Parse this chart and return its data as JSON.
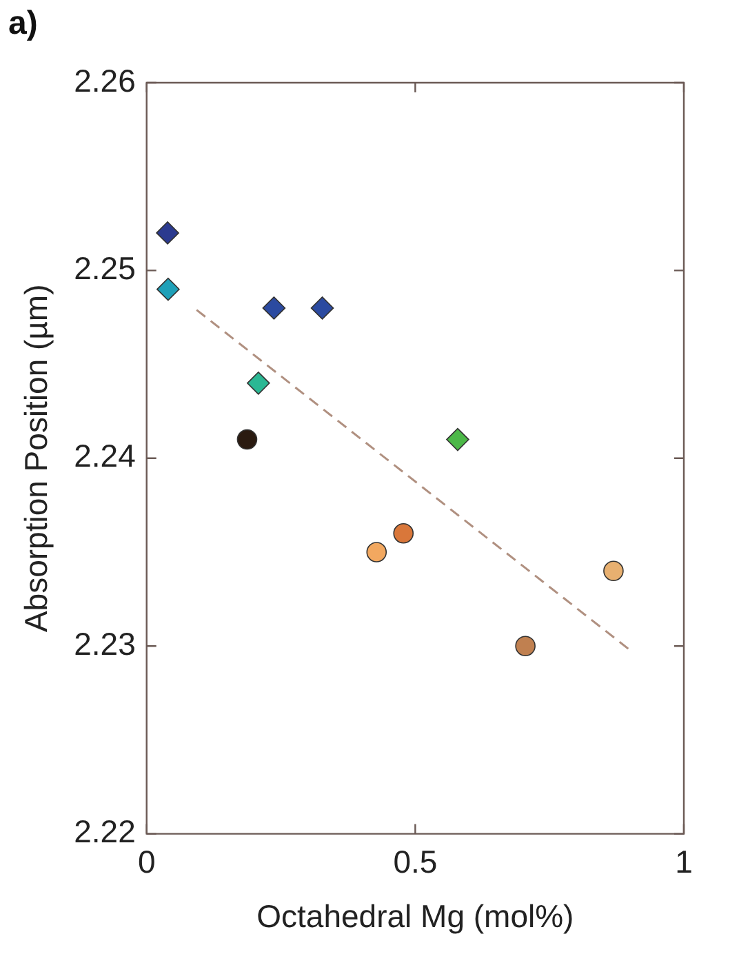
{
  "chart_data": {
    "type": "scatter",
    "xlabel": "Octahedral Mg (mol%)",
    "ylabel": "Absorption Position (µm)",
    "annotations": [
      "a)"
    ],
    "xlim": [
      0,
      1
    ],
    "xticks": [
      0,
      0.5,
      1
    ],
    "ylim": [
      2.22,
      2.26
    ],
    "yticks": [
      2.22,
      2.23,
      2.24,
      2.25,
      2.26
    ],
    "grid": false,
    "legend": false,
    "series": [
      {
        "marker": "diamond",
        "x": [
          0.039,
          0.04,
          0.237,
          0.327,
          0.208,
          0.579
        ],
        "values": [
          2.252,
          2.249,
          2.248,
          2.248,
          2.244,
          2.241
        ],
        "colors": [
          "#2b3a8f",
          "#1fa0b8",
          "#2b4aa0",
          "#2b4aa0",
          "#2bb894",
          "#4cb848"
        ]
      },
      {
        "marker": "circle",
        "x": [
          0.187,
          0.478,
          0.428,
          0.869,
          0.705
        ],
        "values": [
          2.241,
          2.236,
          2.235,
          2.234,
          2.23
        ],
        "colors": [
          "#2a1a10",
          "#d9773a",
          "#f2a860",
          "#e8b070",
          "#c08050"
        ]
      },
      {
        "type": "line",
        "marker": "none",
        "line_style": "dashed",
        "color": "#b09080",
        "x": [
          0.093,
          0.899
        ],
        "values": [
          2.2479,
          2.2298
        ]
      }
    ]
  }
}
